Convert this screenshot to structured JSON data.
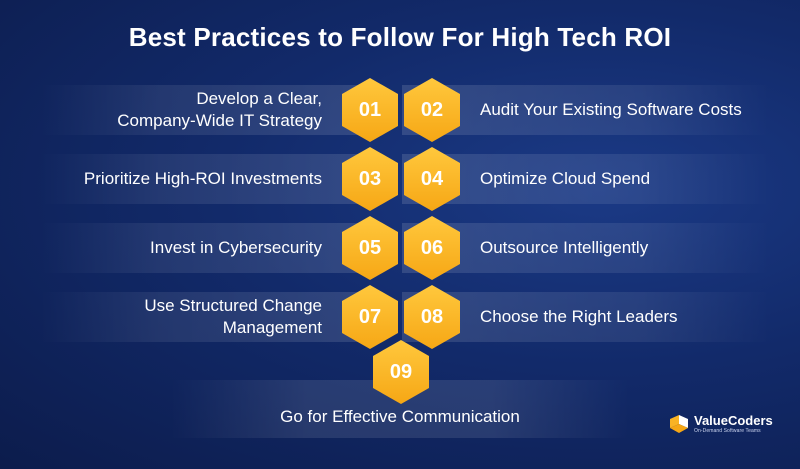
{
  "title": "Best Practices to Follow For High Tech ROI",
  "items": [
    {
      "num": "01",
      "label": "Develop a Clear,\nCompany-Wide IT Strategy"
    },
    {
      "num": "02",
      "label": "Audit Your Existing Software Costs"
    },
    {
      "num": "03",
      "label": "Prioritize High-ROI Investments"
    },
    {
      "num": "04",
      "label": "Optimize Cloud Spend"
    },
    {
      "num": "05",
      "label": "Invest in Cybersecurity"
    },
    {
      "num": "06",
      "label": "Outsource Intelligently"
    },
    {
      "num": "07",
      "label": "Use Structured Change\nManagement"
    },
    {
      "num": "08",
      "label": "Choose the Right Leaders"
    },
    {
      "num": "09",
      "label": "Go for Effective Communication"
    }
  ],
  "logo": {
    "name": "ValueCoders",
    "tagline": "On-Demand Software Teams"
  },
  "colors": {
    "accent": "#f9b324",
    "background": "#122a6a"
  }
}
